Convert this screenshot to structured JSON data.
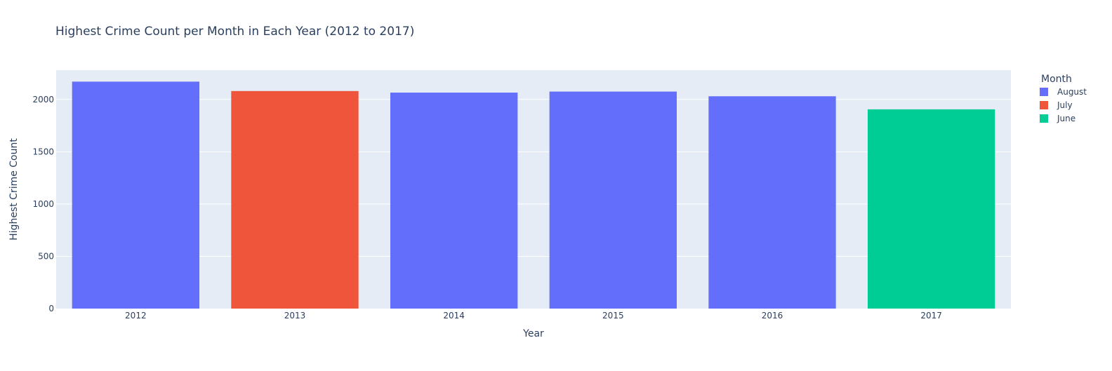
{
  "chart_data": {
    "type": "bar",
    "title": "Highest Crime Count per Month in Each Year (2012 to 2017)",
    "xlabel": "Year",
    "ylabel": "Highest Crime Count",
    "categories": [
      "2012",
      "2013",
      "2014",
      "2015",
      "2016",
      "2017"
    ],
    "values": [
      2170,
      2080,
      2065,
      2075,
      2030,
      1905
    ],
    "months": [
      "August",
      "July",
      "August",
      "August",
      "August",
      "June"
    ],
    "ylim": [
      0,
      2280
    ],
    "yticks": [
      0,
      500,
      1000,
      1500,
      2000
    ],
    "ytick_labels": [
      "0",
      "500",
      "1000",
      "1500",
      "2000"
    ],
    "grid": true,
    "legend": {
      "title": "Month",
      "placement": "right",
      "entries": [
        {
          "name": "August",
          "color": "#636efa"
        },
        {
          "name": "July",
          "color": "#ef553b"
        },
        {
          "name": "June",
          "color": "#00cc96"
        }
      ]
    },
    "plot_background": "#e5ecf6"
  }
}
